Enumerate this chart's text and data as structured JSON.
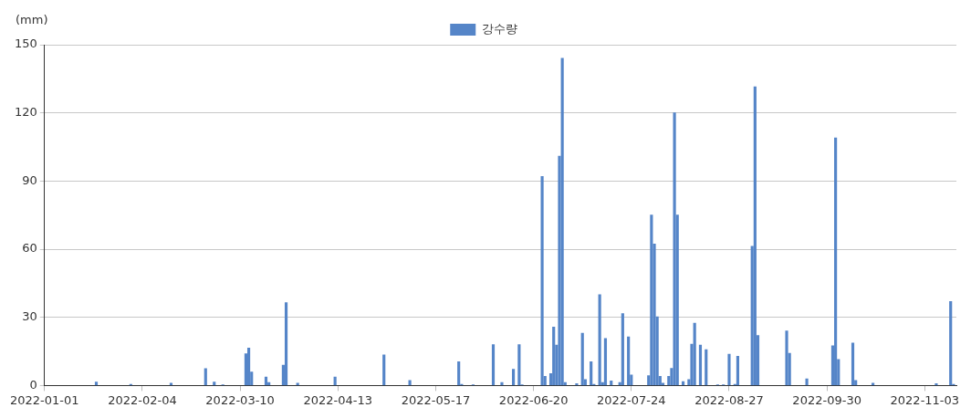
{
  "chart_data": {
    "type": "bar",
    "ylabel": "(mm)",
    "legend": "top",
    "x": [
      "2022-01-19",
      "2022-01-31",
      "2022-02-14",
      "2022-02-26",
      "2022-03-01",
      "2022-03-04",
      "2022-03-12",
      "2022-03-13",
      "2022-03-14",
      "2022-03-19",
      "2022-03-20",
      "2022-03-25",
      "2022-03-26",
      "2022-03-30",
      "2022-04-12",
      "2022-04-29",
      "2022-05-08",
      "2022-05-25",
      "2022-05-26",
      "2022-05-30",
      "2022-06-06",
      "2022-06-09",
      "2022-06-13",
      "2022-06-15",
      "2022-06-16",
      "2022-06-23",
      "2022-06-24",
      "2022-06-26",
      "2022-06-27",
      "2022-06-28",
      "2022-06-29",
      "2022-06-30",
      "2022-07-01",
      "2022-07-05",
      "2022-07-07",
      "2022-07-08",
      "2022-07-10",
      "2022-07-11",
      "2022-07-13",
      "2022-07-14",
      "2022-07-15",
      "2022-07-17",
      "2022-07-20",
      "2022-07-21",
      "2022-07-23",
      "2022-07-24",
      "2022-07-30",
      "2022-07-31",
      "2022-08-01",
      "2022-08-02",
      "2022-08-03",
      "2022-08-04",
      "2022-08-06",
      "2022-08-07",
      "2022-08-08",
      "2022-08-09",
      "2022-08-11",
      "2022-08-13",
      "2022-08-14",
      "2022-08-15",
      "2022-08-17",
      "2022-08-19",
      "2022-08-23",
      "2022-08-25",
      "2022-08-27",
      "2022-08-29",
      "2022-08-30",
      "2022-09-04",
      "2022-09-05",
      "2022-09-06",
      "2022-09-16",
      "2022-09-17",
      "2022-09-23",
      "2022-10-02",
      "2022-10-03",
      "2022-10-04",
      "2022-10-09",
      "2022-10-10",
      "2022-10-16",
      "2022-11-07",
      "2022-11-12",
      "2022-11-13"
    ],
    "series": [
      {
        "name": "강수량",
        "color": "#5585c8",
        "values": [
          1.5,
          0.5,
          1,
          7.5,
          1.5,
          0.3,
          14,
          16.5,
          6,
          3.7,
          1.3,
          9,
          36.5,
          1,
          3.7,
          13.5,
          2.2,
          10.5,
          0.5,
          0.3,
          18,
          1.3,
          7.2,
          18,
          0.3,
          92,
          4,
          5.3,
          25.7,
          17.8,
          101,
          144,
          1.3,
          0.8,
          23,
          2.6,
          10.5,
          0.5,
          40,
          1.3,
          20.7,
          2,
          1.3,
          31.7,
          21.4,
          4.6,
          4.3,
          75,
          62.3,
          30.3,
          4,
          1,
          4,
          7.6,
          120,
          75,
          1.7,
          2.6,
          18.2,
          27.4,
          17.8,
          15.8,
          0.3,
          0.3,
          13.8,
          0.5,
          12.9,
          61.3,
          131.5,
          22,
          24,
          14.2,
          2.9,
          17.5,
          109,
          11.5,
          18.7,
          2.2,
          1,
          0.8,
          37,
          0.5
        ]
      }
    ],
    "xlim": [
      "2022-01-01",
      "2022-11-14"
    ],
    "xticks": [
      "2022-01-01",
      "2022-02-04",
      "2022-03-10",
      "2022-04-13",
      "2022-05-17",
      "2022-06-20",
      "2022-07-24",
      "2022-08-27",
      "2022-09-30",
      "2022-11-03"
    ],
    "ylim": [
      0,
      150
    ],
    "yticks": [
      0,
      30,
      60,
      90,
      120,
      150
    ],
    "grid": "y"
  }
}
